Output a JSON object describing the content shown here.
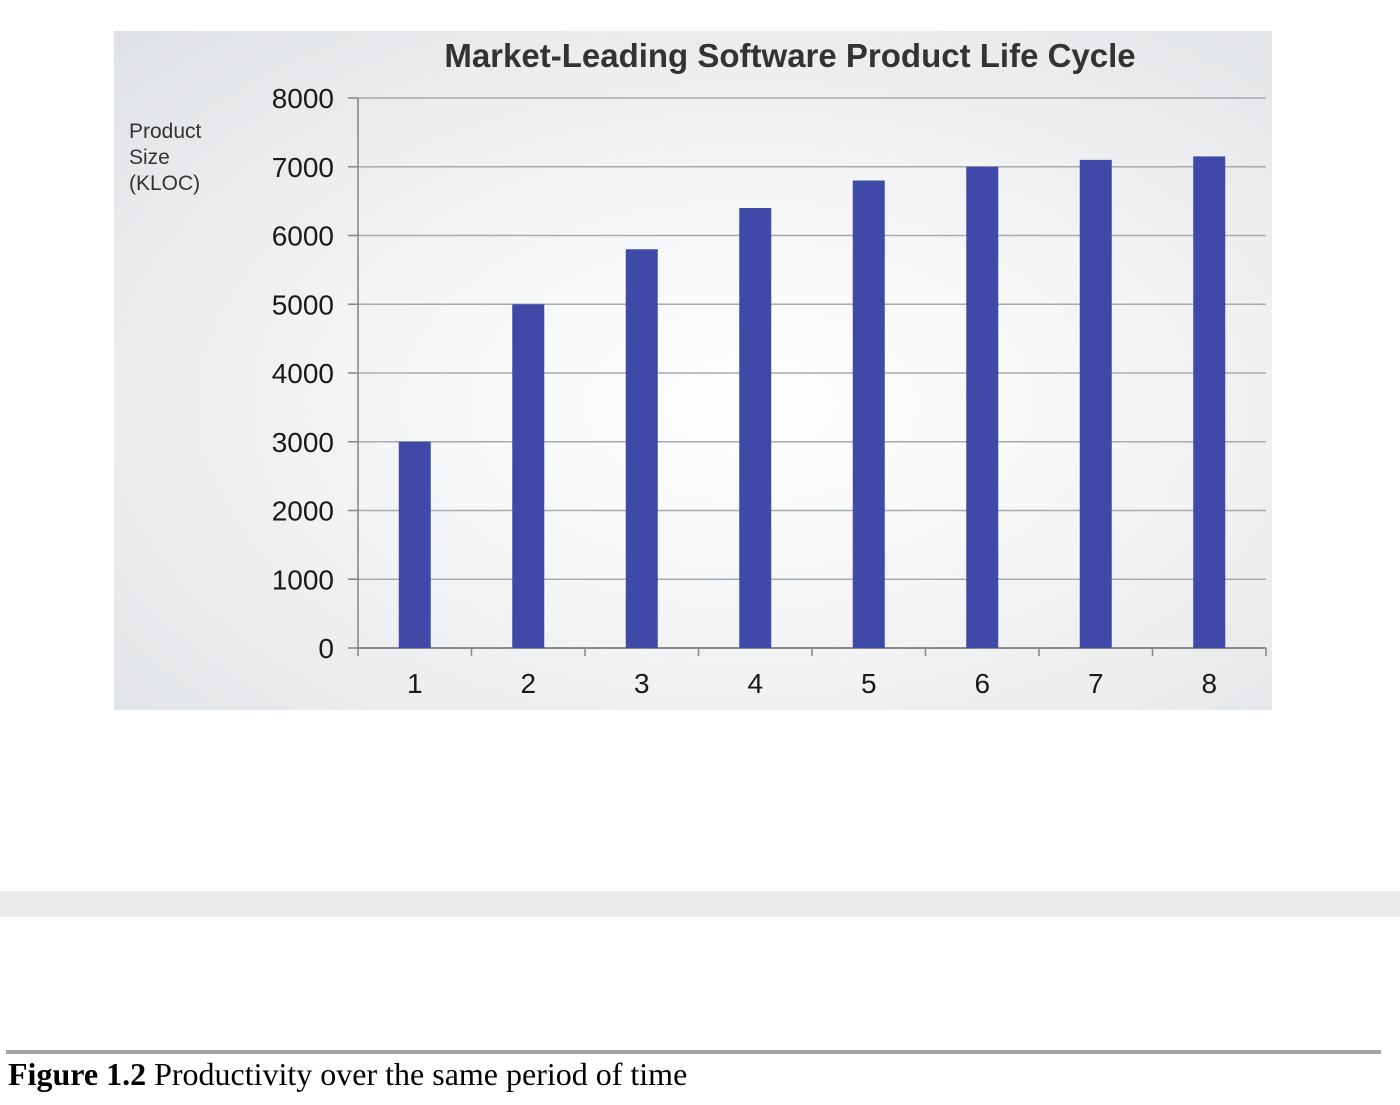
{
  "chart_data": {
    "type": "bar",
    "title": "Market-Leading Software Product Life Cycle",
    "ylabel_lines": [
      "Product",
      "Size",
      "(KLOC)"
    ],
    "xlabel": "",
    "categories": [
      "1",
      "2",
      "3",
      "4",
      "5",
      "6",
      "7",
      "8"
    ],
    "values": [
      3000,
      5000,
      5800,
      6400,
      6800,
      7000,
      7100,
      7150
    ],
    "ylim": [
      0,
      8000
    ],
    "yticks": [
      0,
      1000,
      2000,
      3000,
      4000,
      5000,
      6000,
      7000,
      8000
    ],
    "grid": true,
    "legend": "none",
    "bar_color": "#3f4aa8"
  },
  "caption": {
    "label": "Figure 1.2",
    "text": " Productivity over the same period of time"
  }
}
